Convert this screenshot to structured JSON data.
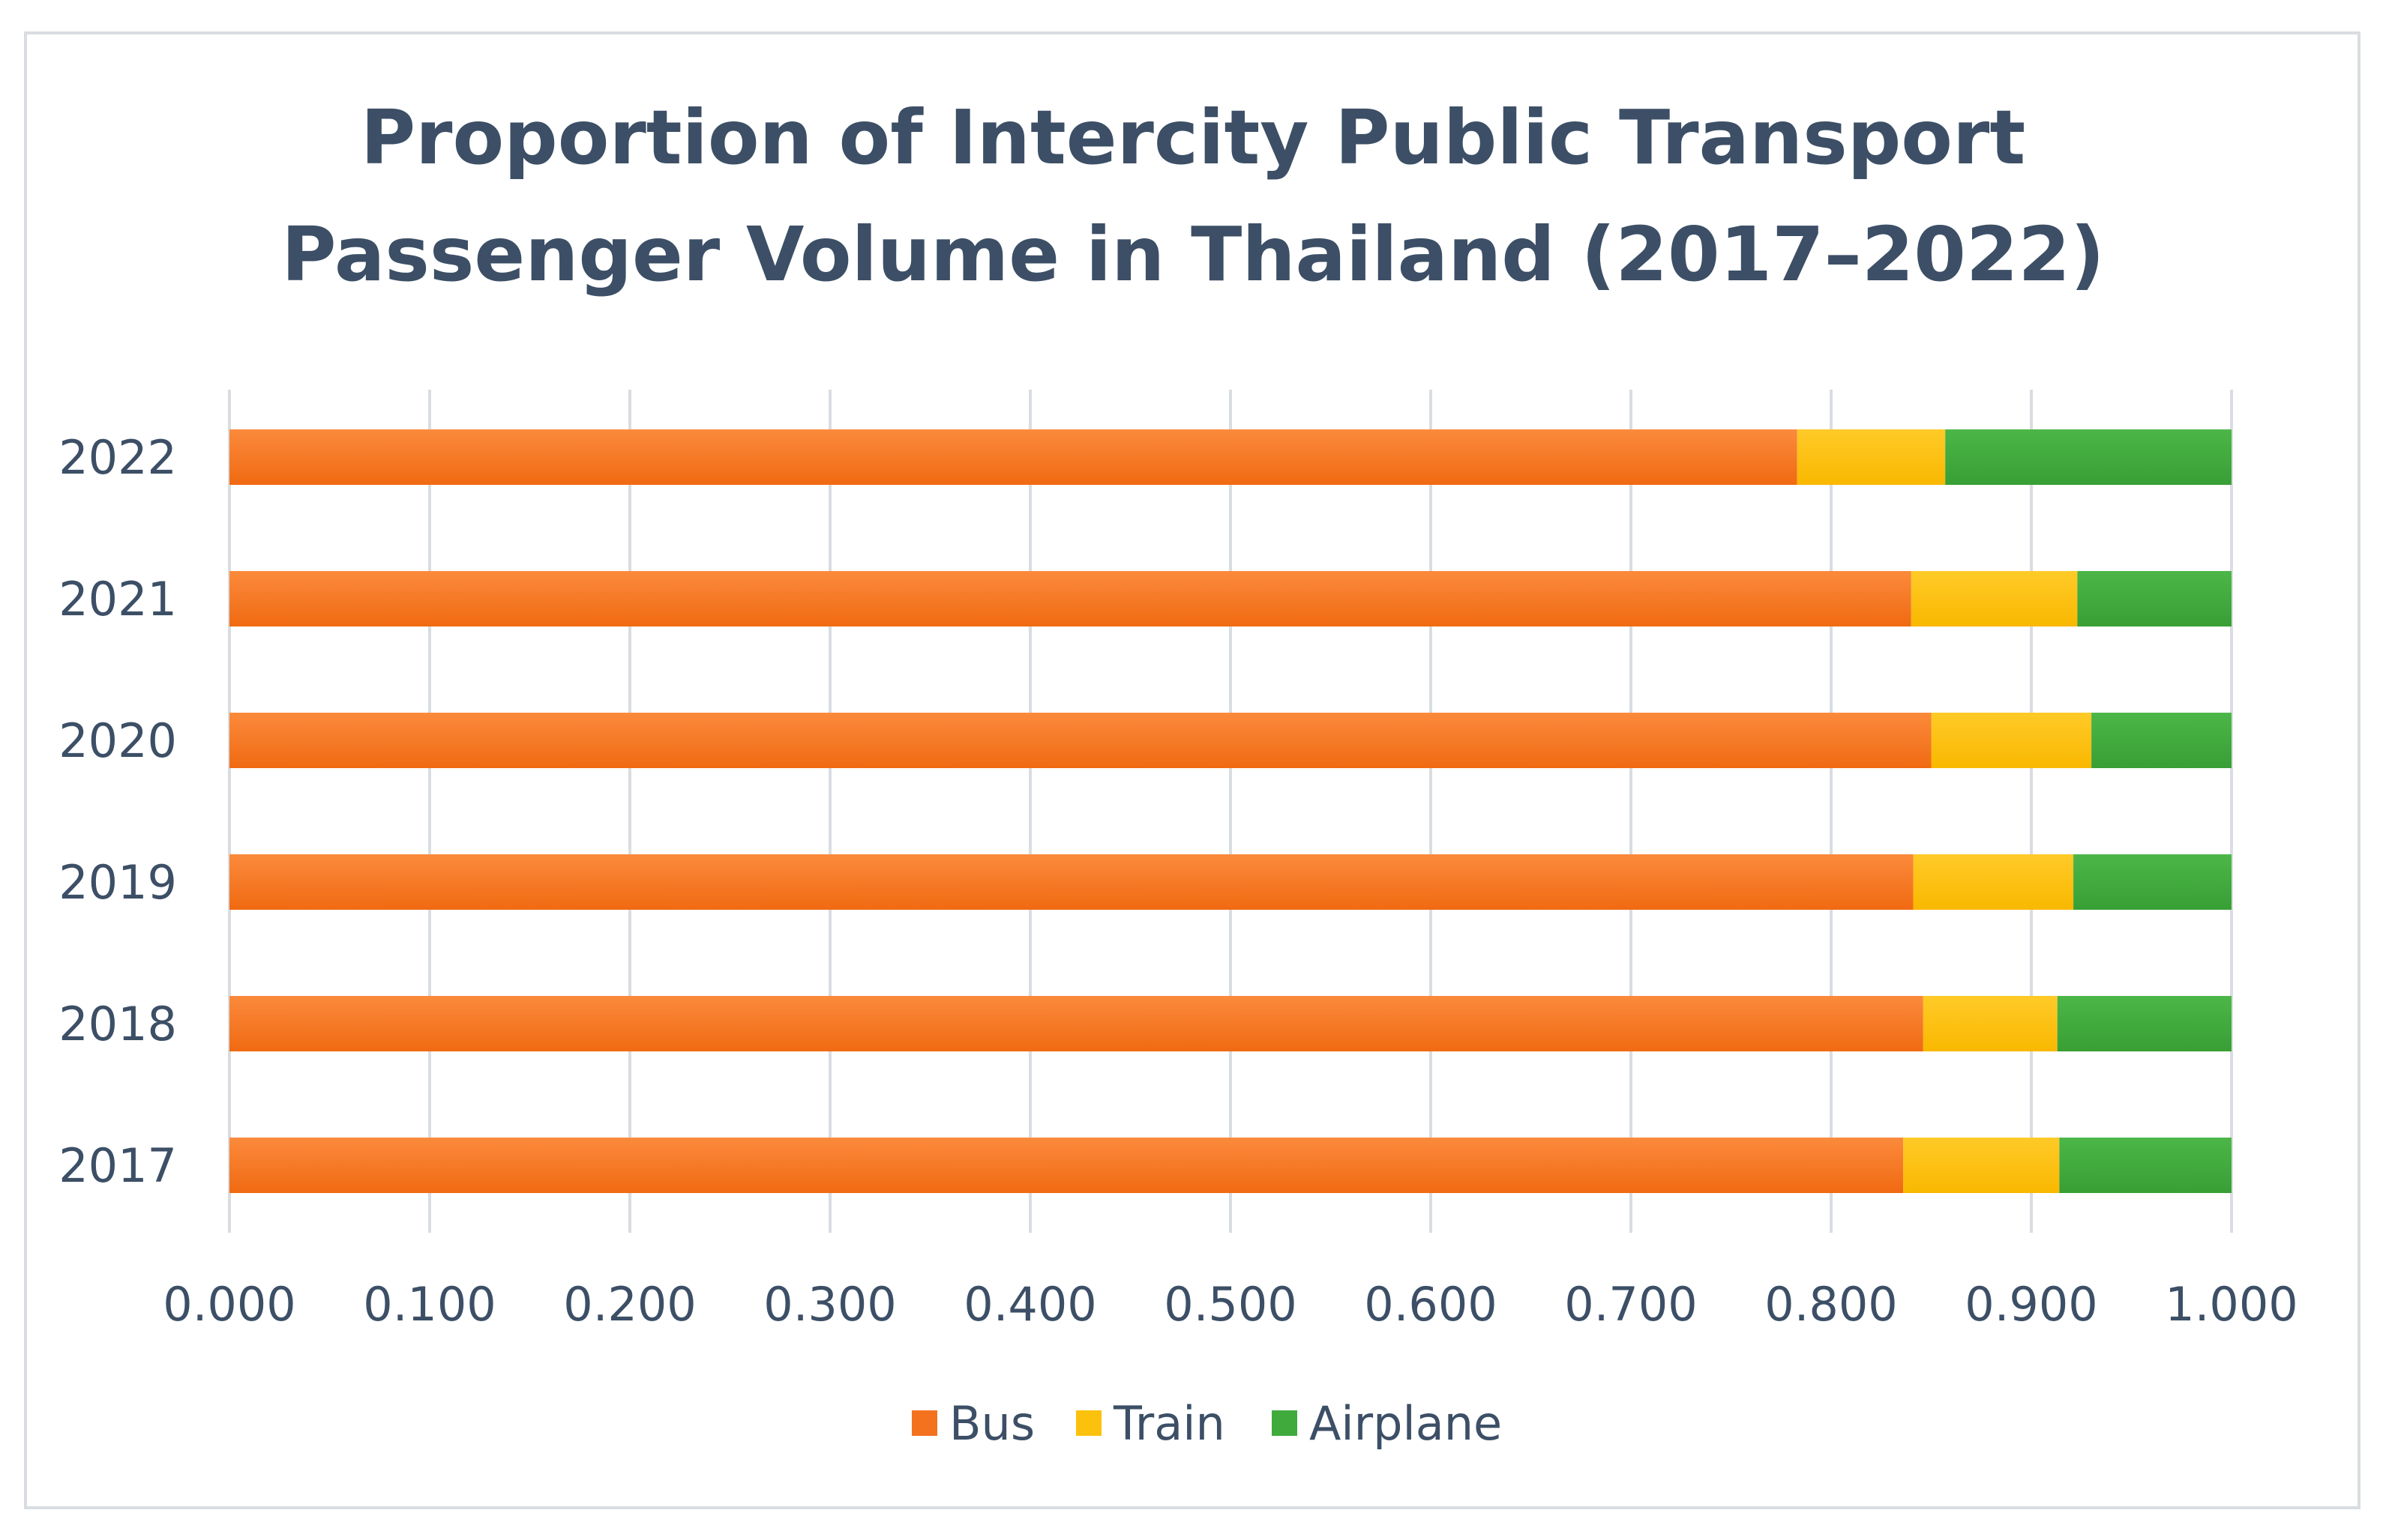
{
  "chart_data": {
    "type": "bar",
    "orientation": "horizontal",
    "stacked": true,
    "title_lines": [
      "Proportion of Intercity Public Transport",
      "Passenger Volume in Thailand (2017–2022)"
    ],
    "categories": [
      "2022",
      "2021",
      "2020",
      "2019",
      "2018",
      "2017"
    ],
    "series": [
      {
        "name": "Bus",
        "color": "#f4711e",
        "values": [
          0.783,
          0.84,
          0.85,
          0.841,
          0.846,
          0.836
        ]
      },
      {
        "name": "Train",
        "color": "#fcc10c",
        "values": [
          0.074,
          0.083,
          0.08,
          0.08,
          0.067,
          0.078
        ]
      },
      {
        "name": "Airplane",
        "color": "#40aa3c",
        "values": [
          0.143,
          0.077,
          0.07,
          0.079,
          0.087,
          0.086
        ]
      }
    ],
    "xlim": [
      0.0,
      1.0
    ],
    "xticks": [
      "0.000",
      "0.100",
      "0.200",
      "0.300",
      "0.400",
      "0.500",
      "0.600",
      "0.700",
      "0.800",
      "0.900",
      "1.000"
    ],
    "xlabel": "",
    "ylabel": "",
    "grid": "vertical",
    "legend_position": "bottom"
  }
}
